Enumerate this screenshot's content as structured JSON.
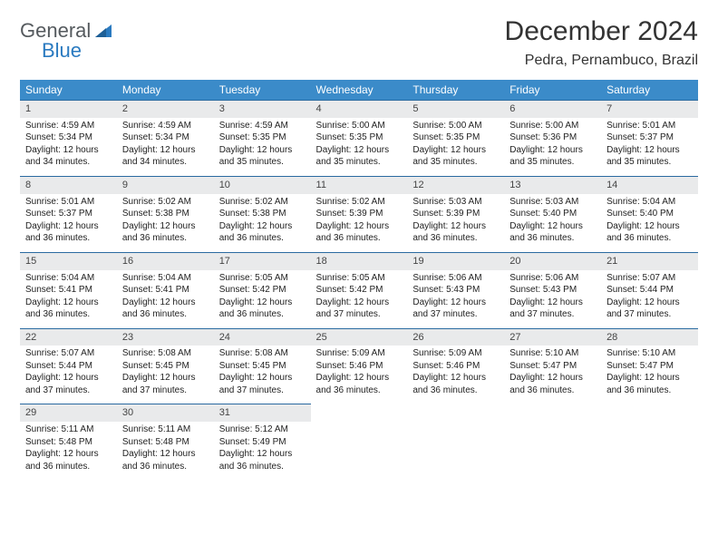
{
  "logo": {
    "word1": "General",
    "word2": "Blue"
  },
  "title": "December 2024",
  "location": "Pedra, Pernambuco, Brazil",
  "colors": {
    "header_bg": "#3b8bc9",
    "header_text": "#ffffff",
    "row_border": "#2a6aa0",
    "daynum_bg": "#e9eaeb",
    "logo_gray": "#555a5e",
    "logo_blue": "#2a7ac0",
    "page_bg": "#ffffff"
  },
  "day_labels": [
    "Sunday",
    "Monday",
    "Tuesday",
    "Wednesday",
    "Thursday",
    "Friday",
    "Saturday"
  ],
  "weeks": [
    [
      {
        "n": 1,
        "sr": "4:59 AM",
        "ss": "5:34 PM",
        "dl": "12 hours and 34 minutes."
      },
      {
        "n": 2,
        "sr": "4:59 AM",
        "ss": "5:34 PM",
        "dl": "12 hours and 34 minutes."
      },
      {
        "n": 3,
        "sr": "4:59 AM",
        "ss": "5:35 PM",
        "dl": "12 hours and 35 minutes."
      },
      {
        "n": 4,
        "sr": "5:00 AM",
        "ss": "5:35 PM",
        "dl": "12 hours and 35 minutes."
      },
      {
        "n": 5,
        "sr": "5:00 AM",
        "ss": "5:35 PM",
        "dl": "12 hours and 35 minutes."
      },
      {
        "n": 6,
        "sr": "5:00 AM",
        "ss": "5:36 PM",
        "dl": "12 hours and 35 minutes."
      },
      {
        "n": 7,
        "sr": "5:01 AM",
        "ss": "5:37 PM",
        "dl": "12 hours and 35 minutes."
      }
    ],
    [
      {
        "n": 8,
        "sr": "5:01 AM",
        "ss": "5:37 PM",
        "dl": "12 hours and 36 minutes."
      },
      {
        "n": 9,
        "sr": "5:02 AM",
        "ss": "5:38 PM",
        "dl": "12 hours and 36 minutes."
      },
      {
        "n": 10,
        "sr": "5:02 AM",
        "ss": "5:38 PM",
        "dl": "12 hours and 36 minutes."
      },
      {
        "n": 11,
        "sr": "5:02 AM",
        "ss": "5:39 PM",
        "dl": "12 hours and 36 minutes."
      },
      {
        "n": 12,
        "sr": "5:03 AM",
        "ss": "5:39 PM",
        "dl": "12 hours and 36 minutes."
      },
      {
        "n": 13,
        "sr": "5:03 AM",
        "ss": "5:40 PM",
        "dl": "12 hours and 36 minutes."
      },
      {
        "n": 14,
        "sr": "5:04 AM",
        "ss": "5:40 PM",
        "dl": "12 hours and 36 minutes."
      }
    ],
    [
      {
        "n": 15,
        "sr": "5:04 AM",
        "ss": "5:41 PM",
        "dl": "12 hours and 36 minutes."
      },
      {
        "n": 16,
        "sr": "5:04 AM",
        "ss": "5:41 PM",
        "dl": "12 hours and 36 minutes."
      },
      {
        "n": 17,
        "sr": "5:05 AM",
        "ss": "5:42 PM",
        "dl": "12 hours and 36 minutes."
      },
      {
        "n": 18,
        "sr": "5:05 AM",
        "ss": "5:42 PM",
        "dl": "12 hours and 37 minutes."
      },
      {
        "n": 19,
        "sr": "5:06 AM",
        "ss": "5:43 PM",
        "dl": "12 hours and 37 minutes."
      },
      {
        "n": 20,
        "sr": "5:06 AM",
        "ss": "5:43 PM",
        "dl": "12 hours and 37 minutes."
      },
      {
        "n": 21,
        "sr": "5:07 AM",
        "ss": "5:44 PM",
        "dl": "12 hours and 37 minutes."
      }
    ],
    [
      {
        "n": 22,
        "sr": "5:07 AM",
        "ss": "5:44 PM",
        "dl": "12 hours and 37 minutes."
      },
      {
        "n": 23,
        "sr": "5:08 AM",
        "ss": "5:45 PM",
        "dl": "12 hours and 37 minutes."
      },
      {
        "n": 24,
        "sr": "5:08 AM",
        "ss": "5:45 PM",
        "dl": "12 hours and 37 minutes."
      },
      {
        "n": 25,
        "sr": "5:09 AM",
        "ss": "5:46 PM",
        "dl": "12 hours and 36 minutes."
      },
      {
        "n": 26,
        "sr": "5:09 AM",
        "ss": "5:46 PM",
        "dl": "12 hours and 36 minutes."
      },
      {
        "n": 27,
        "sr": "5:10 AM",
        "ss": "5:47 PM",
        "dl": "12 hours and 36 minutes."
      },
      {
        "n": 28,
        "sr": "5:10 AM",
        "ss": "5:47 PM",
        "dl": "12 hours and 36 minutes."
      }
    ],
    [
      {
        "n": 29,
        "sr": "5:11 AM",
        "ss": "5:48 PM",
        "dl": "12 hours and 36 minutes."
      },
      {
        "n": 30,
        "sr": "5:11 AM",
        "ss": "5:48 PM",
        "dl": "12 hours and 36 minutes."
      },
      {
        "n": 31,
        "sr": "5:12 AM",
        "ss": "5:49 PM",
        "dl": "12 hours and 36 minutes."
      },
      null,
      null,
      null,
      null
    ]
  ],
  "labels": {
    "sunrise": "Sunrise:",
    "sunset": "Sunset:",
    "daylight": "Daylight:"
  }
}
